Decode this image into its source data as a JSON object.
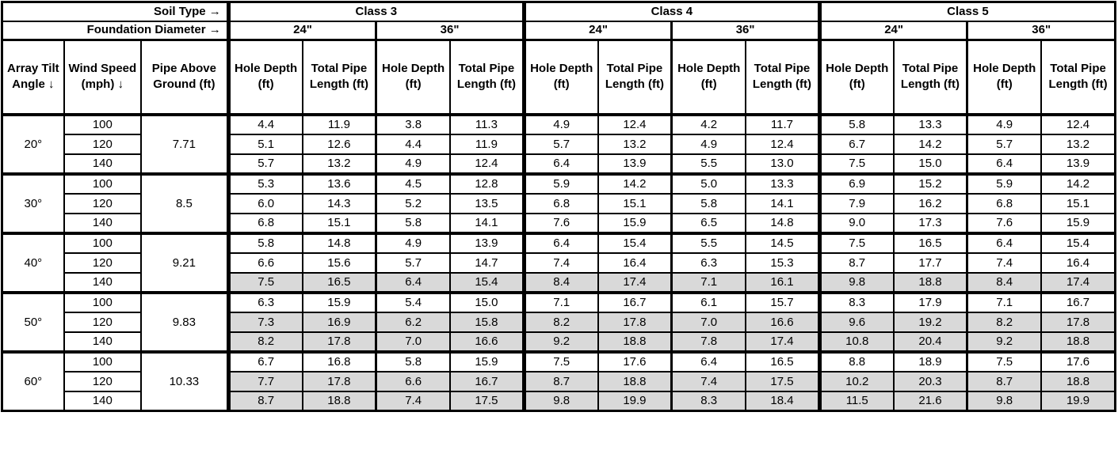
{
  "chart_data": {
    "type": "table",
    "corner": {
      "soil_type_label": "Soil Type →",
      "foundation_diameter_label": "Foundation Diameter →"
    },
    "column_headers": {
      "array_tilt": "Array Tilt Angle ↓",
      "wind_speed": "Wind Speed (mph) ↓",
      "pipe_above_ground": "Pipe Above Ground (ft)",
      "soil_classes": [
        "Class 3",
        "Class 4",
        "Class 5"
      ],
      "diameters": [
        "24\"",
        "36\""
      ],
      "metrics": [
        "Hole Depth (ft)",
        "Total Pipe Length (ft)"
      ]
    },
    "colors": {
      "border": "#000000",
      "background": "#ffffff",
      "shaded_cell": "#d9d9d9",
      "text": "#000000"
    },
    "sections": [
      {
        "tilt_angle": "20°",
        "pipe_above_ground": "7.71",
        "rows": [
          {
            "wind_speed": "100",
            "shaded": false,
            "values": [
              "4.4",
              "11.9",
              "3.8",
              "11.3",
              "4.9",
              "12.4",
              "4.2",
              "11.7",
              "5.8",
              "13.3",
              "4.9",
              "12.4"
            ]
          },
          {
            "wind_speed": "120",
            "shaded": false,
            "values": [
              "5.1",
              "12.6",
              "4.4",
              "11.9",
              "5.7",
              "13.2",
              "4.9",
              "12.4",
              "6.7",
              "14.2",
              "5.7",
              "13.2"
            ]
          },
          {
            "wind_speed": "140",
            "shaded": false,
            "values": [
              "5.7",
              "13.2",
              "4.9",
              "12.4",
              "6.4",
              "13.9",
              "5.5",
              "13.0",
              "7.5",
              "15.0",
              "6.4",
              "13.9"
            ]
          }
        ]
      },
      {
        "tilt_angle": "30°",
        "pipe_above_ground": "8.5",
        "rows": [
          {
            "wind_speed": "100",
            "shaded": false,
            "values": [
              "5.3",
              "13.6",
              "4.5",
              "12.8",
              "5.9",
              "14.2",
              "5.0",
              "13.3",
              "6.9",
              "15.2",
              "5.9",
              "14.2"
            ]
          },
          {
            "wind_speed": "120",
            "shaded": false,
            "values": [
              "6.0",
              "14.3",
              "5.2",
              "13.5",
              "6.8",
              "15.1",
              "5.8",
              "14.1",
              "7.9",
              "16.2",
              "6.8",
              "15.1"
            ]
          },
          {
            "wind_speed": "140",
            "shaded": false,
            "values": [
              "6.8",
              "15.1",
              "5.8",
              "14.1",
              "7.6",
              "15.9",
              "6.5",
              "14.8",
              "9.0",
              "17.3",
              "7.6",
              "15.9"
            ]
          }
        ]
      },
      {
        "tilt_angle": "40°",
        "pipe_above_ground": "9.21",
        "rows": [
          {
            "wind_speed": "100",
            "shaded": false,
            "values": [
              "5.8",
              "14.8",
              "4.9",
              "13.9",
              "6.4",
              "15.4",
              "5.5",
              "14.5",
              "7.5",
              "16.5",
              "6.4",
              "15.4"
            ]
          },
          {
            "wind_speed": "120",
            "shaded": false,
            "values": [
              "6.6",
              "15.6",
              "5.7",
              "14.7",
              "7.4",
              "16.4",
              "6.3",
              "15.3",
              "8.7",
              "17.7",
              "7.4",
              "16.4"
            ]
          },
          {
            "wind_speed": "140",
            "shaded": true,
            "values": [
              "7.5",
              "16.5",
              "6.4",
              "15.4",
              "8.4",
              "17.4",
              "7.1",
              "16.1",
              "9.8",
              "18.8",
              "8.4",
              "17.4"
            ]
          }
        ]
      },
      {
        "tilt_angle": "50°",
        "pipe_above_ground": "9.83",
        "rows": [
          {
            "wind_speed": "100",
            "shaded": false,
            "values": [
              "6.3",
              "15.9",
              "5.4",
              "15.0",
              "7.1",
              "16.7",
              "6.1",
              "15.7",
              "8.3",
              "17.9",
              "7.1",
              "16.7"
            ]
          },
          {
            "wind_speed": "120",
            "shaded": true,
            "values": [
              "7.3",
              "16.9",
              "6.2",
              "15.8",
              "8.2",
              "17.8",
              "7.0",
              "16.6",
              "9.6",
              "19.2",
              "8.2",
              "17.8"
            ]
          },
          {
            "wind_speed": "140",
            "shaded": true,
            "values": [
              "8.2",
              "17.8",
              "7.0",
              "16.6",
              "9.2",
              "18.8",
              "7.8",
              "17.4",
              "10.8",
              "20.4",
              "9.2",
              "18.8"
            ]
          }
        ]
      },
      {
        "tilt_angle": "60°",
        "pipe_above_ground": "10.33",
        "rows": [
          {
            "wind_speed": "100",
            "shaded": false,
            "values": [
              "6.7",
              "16.8",
              "5.8",
              "15.9",
              "7.5",
              "17.6",
              "6.4",
              "16.5",
              "8.8",
              "18.9",
              "7.5",
              "17.6"
            ]
          },
          {
            "wind_speed": "120",
            "shaded": true,
            "values": [
              "7.7",
              "17.8",
              "6.6",
              "16.7",
              "8.7",
              "18.8",
              "7.4",
              "17.5",
              "10.2",
              "20.3",
              "8.7",
              "18.8"
            ]
          },
          {
            "wind_speed": "140",
            "shaded": true,
            "values": [
              "8.7",
              "18.8",
              "7.4",
              "17.5",
              "9.8",
              "19.9",
              "8.3",
              "18.4",
              "11.5",
              "21.6",
              "9.8",
              "19.9"
            ]
          }
        ]
      }
    ]
  }
}
